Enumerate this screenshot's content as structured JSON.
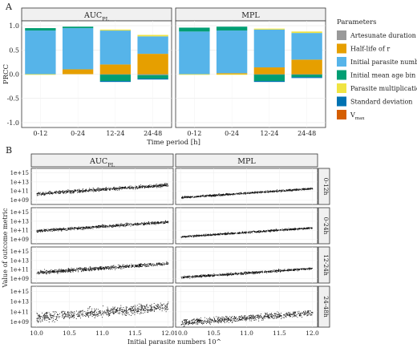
{
  "panel_a_label": "A",
  "panel_b_label": "B",
  "chart_data": [
    {
      "type": "bar",
      "stacked": true,
      "facets": [
        "AUC_PL",
        "MPL"
      ],
      "facet_labels": [
        {
          "main": "AUC",
          "sub": "PL"
        },
        {
          "main": "MPL",
          "sub": ""
        }
      ],
      "categories": [
        "0-12",
        "0-24",
        "12-24",
        "24-48"
      ],
      "xlabel": "Time period [h]",
      "ylabel": "PRCC",
      "ylim": [
        -1.1,
        1.1
      ],
      "yticks": [
        -1.0,
        -0.5,
        0.0,
        0.5,
        1.0
      ],
      "ytick_labels": [
        "-1.0",
        "-0.5",
        "0.0",
        "0.5",
        "1.0"
      ],
      "grid": true,
      "legend_title": "Parameters",
      "legend_position": "right",
      "series": [
        {
          "name": "Artesunate duration",
          "color": "#999999",
          "values": {
            "AUC_PL": [
              0.0,
              0.0,
              -0.01,
              -0.02
            ],
            "MPL": [
              0.0,
              0.0,
              -0.01,
              -0.01
            ]
          }
        },
        {
          "name": "Half-life of r",
          "color": "#E69F00",
          "values": {
            "AUC_PL": [
              0.0,
              0.1,
              0.2,
              0.42
            ],
            "MPL": [
              0.0,
              0.02,
              0.14,
              0.3
            ]
          }
        },
        {
          "name": "Initial parasite number",
          "color": "#56B4E9",
          "values": {
            "AUC_PL": [
              0.9,
              0.85,
              0.7,
              0.36
            ],
            "MPL": [
              0.88,
              0.88,
              0.78,
              0.55
            ]
          }
        },
        {
          "name": "Initial mean age bin",
          "color": "#009E73",
          "values": {
            "AUC_PL": [
              0.05,
              0.03,
              -0.13,
              -0.07
            ],
            "MPL": [
              0.08,
              0.08,
              -0.13,
              -0.05
            ]
          }
        },
        {
          "name": "Parasite multiplication rate",
          "color": "#F0E442",
          "values": {
            "AUC_PL": [
              -0.01,
              0.0,
              0.02,
              0.03
            ],
            "MPL": [
              -0.01,
              -0.01,
              0.02,
              0.03
            ]
          }
        },
        {
          "name": "Standard deviation",
          "color": "#0072B2",
          "values": {
            "AUC_PL": [
              0.0,
              0.0,
              -0.02,
              -0.02
            ],
            "MPL": [
              0.0,
              0.0,
              -0.02,
              -0.02
            ]
          }
        },
        {
          "name": "V_max",
          "color": "#D55E00",
          "legend_main": "V",
          "legend_sub": "max",
          "values": {
            "AUC_PL": [
              0.0,
              0.0,
              0.0,
              0.0
            ],
            "MPL": [
              0.0,
              0.0,
              0.0,
              0.0
            ]
          }
        }
      ]
    },
    {
      "type": "scatter",
      "facets_col": [
        "AUC_PL",
        "MPL"
      ],
      "facet_col_labels": [
        {
          "main": "AUC",
          "sub": "PL"
        },
        {
          "main": "MPL",
          "sub": ""
        }
      ],
      "facets_row": [
        "0-12h",
        "0-24h",
        "12-24h",
        "24-48h"
      ],
      "xlabel": "Initial parasite numbers 10^",
      "ylabel": "Value of outcome metric",
      "xlim": [
        9.92,
        12.08
      ],
      "xticks": [
        10.0,
        10.5,
        11.0,
        11.5,
        12.0
      ],
      "xtick_labels": [
        "10.0",
        "10.5",
        "11.0",
        "11.5",
        "12.0"
      ],
      "y_scale": "log10",
      "ylim_log10": [
        8.0,
        16.0
      ],
      "yticks_log10": [
        9,
        11,
        13,
        15
      ],
      "ytick_labels": [
        "1e+09",
        "1e+11",
        "1e+13",
        "1e+15"
      ],
      "grid": true,
      "trend_log10_y": {
        "AUC_PL": {
          "0-12h": {
            "y_at_x10": 10.4,
            "y_at_x12": 12.4,
            "spread": 0.35
          },
          "0-24h": {
            "y_at_x10": 10.9,
            "y_at_x12": 12.9,
            "spread": 0.3
          },
          "12-24h": {
            "y_at_x10": 10.4,
            "y_at_x12": 12.4,
            "spread": 0.4
          },
          "24-48h": {
            "y_at_x10": 10.0,
            "y_at_x12": 12.0,
            "spread": 0.9
          }
        },
        "MPL": {
          "0-12h": {
            "y_at_x10": 9.6,
            "y_at_x12": 11.6,
            "spread": 0.2
          },
          "0-24h": {
            "y_at_x10": 9.6,
            "y_at_x12": 11.6,
            "spread": 0.2
          },
          "12-24h": {
            "y_at_x10": 9.3,
            "y_at_x12": 11.3,
            "spread": 0.25
          },
          "24-48h": {
            "y_at_x10": 8.9,
            "y_at_x12": 10.9,
            "spread": 0.6
          }
        }
      }
    }
  ]
}
